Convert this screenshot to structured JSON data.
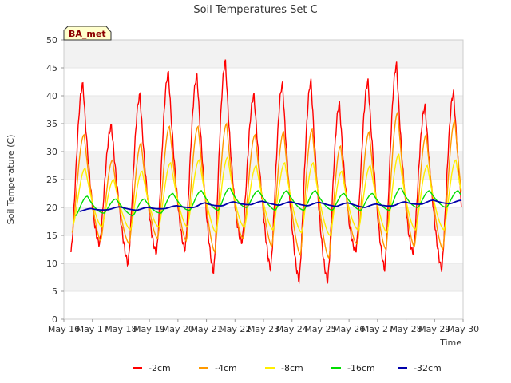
{
  "chart_data": {
    "type": "line",
    "title": "Soil Temperatures Set C",
    "xlabel": "Time",
    "ylabel": "Soil Temperature (C)",
    "badge": "BA_met",
    "xlim": [
      16,
      30
    ],
    "ylim": [
      0,
      50
    ],
    "y_ticks": [
      0,
      5,
      10,
      15,
      20,
      25,
      30,
      35,
      40,
      45,
      50
    ],
    "x_ticks": [
      16,
      17,
      18,
      19,
      20,
      21,
      22,
      23,
      24,
      25,
      26,
      27,
      28,
      29,
      30
    ],
    "x_tick_labels": [
      "May 16",
      "May 17",
      "May 18",
      "May 19",
      "May 20",
      "May 21",
      "May 22",
      "May 23",
      "May 24",
      "May 25",
      "May 26",
      "May 27",
      "May 28",
      "May 29",
      "May 30"
    ],
    "grid": true,
    "legend_position": "bottom",
    "days": [
      16,
      17,
      18,
      19,
      20,
      21,
      22,
      23,
      24,
      25,
      26,
      27,
      28,
      29
    ],
    "series": [
      {
        "name": "-2cm",
        "color": "#ff0000",
        "daily_min": [
          12.0,
          13.5,
          10.0,
          12.0,
          12.5,
          8.5,
          14.0,
          9.0,
          7.0,
          7.0,
          12.5,
          9.0,
          12.0,
          9.0
        ],
        "daily_max": [
          42.0,
          34.5,
          40.0,
          44.0,
          43.5,
          46.0,
          40.0,
          42.0,
          42.5,
          38.5,
          42.5,
          45.5,
          38.0,
          40.5
        ]
      },
      {
        "name": "-4cm",
        "color": "#ff9900",
        "daily_min": [
          15.5,
          14.0,
          13.5,
          14.5,
          14.0,
          12.0,
          14.5,
          13.0,
          11.5,
          11.0,
          13.5,
          12.5,
          13.0,
          12.5
        ],
        "daily_max": [
          33.0,
          28.5,
          31.5,
          34.5,
          34.5,
          35.0,
          33.0,
          33.5,
          34.0,
          31.0,
          33.5,
          37.0,
          33.0,
          35.5
        ]
      },
      {
        "name": "-8cm",
        "color": "#ffee00",
        "daily_min": [
          17.0,
          16.5,
          16.0,
          16.5,
          16.5,
          15.5,
          16.5,
          16.0,
          15.5,
          15.0,
          16.0,
          15.5,
          16.0,
          16.0
        ],
        "daily_max": [
          27.0,
          25.0,
          26.5,
          28.0,
          28.5,
          29.0,
          27.5,
          28.0,
          28.0,
          26.5,
          27.5,
          29.5,
          27.5,
          28.5
        ]
      },
      {
        "name": "-16cm",
        "color": "#00dd00",
        "daily_min": [
          18.5,
          19.0,
          18.5,
          19.0,
          19.5,
          19.5,
          20.0,
          19.5,
          19.5,
          19.5,
          19.5,
          19.5,
          20.0,
          20.0
        ],
        "daily_max": [
          22.0,
          21.5,
          21.5,
          22.5,
          23.0,
          23.5,
          23.0,
          23.0,
          23.0,
          22.5,
          22.5,
          23.5,
          23.0,
          23.0
        ]
      },
      {
        "name": "-32cm",
        "color": "#0000aa",
        "daily_min": [
          19.3,
          19.6,
          19.5,
          19.8,
          20.0,
          20.3,
          20.5,
          20.4,
          20.3,
          20.2,
          20.0,
          20.3,
          20.6,
          20.7
        ],
        "daily_max": [
          19.8,
          20.1,
          20.0,
          20.3,
          20.8,
          21.0,
          21.1,
          21.0,
          20.9,
          20.8,
          20.6,
          21.0,
          21.3,
          21.3
        ]
      }
    ]
  }
}
